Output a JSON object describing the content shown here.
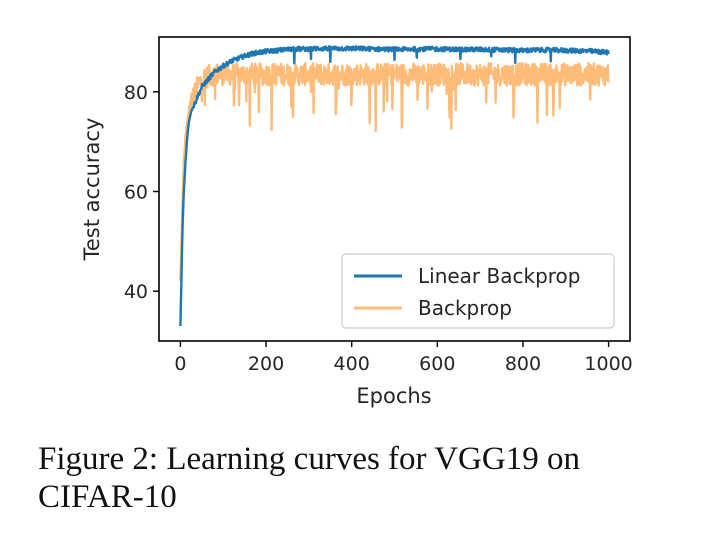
{
  "caption": {
    "line1": "Figure 2:  Learning curves for VGG19 on",
    "line2": "CIFAR-10"
  },
  "chart_data": {
    "type": "line",
    "xlabel": "Epochs",
    "ylabel": "Test accuracy",
    "xlim": [
      -50,
      1050
    ],
    "ylim": [
      30,
      91
    ],
    "xticks": [
      0,
      200,
      400,
      600,
      800,
      1000
    ],
    "yticks": [
      40,
      60,
      80
    ],
    "grid": false,
    "legend_position": "lower-right",
    "series": [
      {
        "name": "Linear Backprop",
        "color": "#1f77b4",
        "x": [
          0,
          2,
          5,
          8,
          12,
          16,
          20,
          25,
          30,
          40,
          50,
          60,
          70,
          80,
          100,
          120,
          150,
          175,
          200,
          225,
          250,
          275,
          300,
          325,
          350,
          400,
          450,
          500,
          550,
          600,
          650,
          700,
          750,
          800,
          850,
          900,
          950,
          1000
        ],
        "values": [
          33,
          41,
          53,
          60,
          66,
          71,
          74,
          76,
          77,
          79,
          81,
          82,
          83,
          84,
          85.2,
          86.2,
          87.2,
          87.8,
          88.1,
          88.3,
          88.5,
          88.6,
          88.6,
          88.7,
          88.7,
          88.7,
          88.6,
          88.5,
          88.6,
          88.6,
          88.5,
          88.5,
          88.4,
          88.3,
          88.4,
          88.3,
          88.2,
          87.9
        ]
      },
      {
        "name": "Backprop",
        "color": "#ffbb78",
        "x": [
          0,
          2,
          5,
          8,
          12,
          16,
          20,
          25,
          30,
          40,
          50,
          60,
          80,
          100,
          150,
          200,
          300,
          400,
          500,
          600,
          700,
          800,
          900,
          1000
        ],
        "values": [
          42,
          48,
          58,
          66,
          71,
          74,
          76,
          78,
          79,
          81,
          82.5,
          83,
          83.5,
          83.5,
          83.5,
          83.5,
          83.5,
          83.5,
          83.5,
          83.5,
          83.5,
          83.5,
          83.5,
          83.5
        ]
      }
    ]
  }
}
